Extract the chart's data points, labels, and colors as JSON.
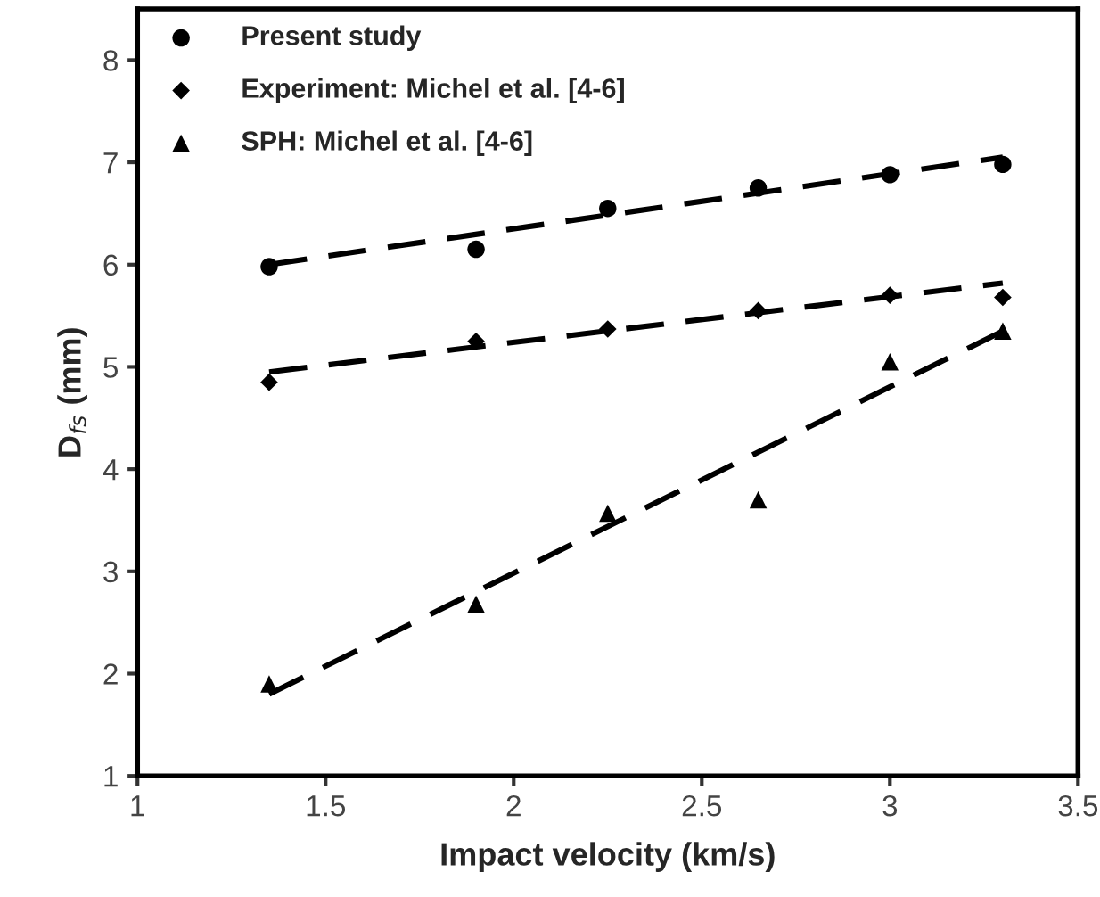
{
  "chart_data": {
    "type": "scatter",
    "xlabel": "Impact velocity (km/s)",
    "ylabel": "D$_{fs}$ (mm)",
    "xlim": [
      1,
      3.5
    ],
    "xticks": [
      1,
      1.5,
      2,
      2.5,
      3,
      3.5
    ],
    "ylim": [
      1,
      8.5
    ],
    "yticks": [
      1,
      2,
      3,
      4,
      5,
      6,
      7,
      8
    ],
    "grid": false,
    "legend": "top left",
    "series": [
      {
        "name": "Present study",
        "color": "#000000",
        "marker": "circle",
        "x": [
          1.35,
          1.9,
          2.25,
          2.65,
          3.0,
          3.3
        ],
        "values": [
          5.98,
          6.15,
          6.55,
          6.75,
          6.88,
          6.98
        ]
      },
      {
        "name": "Experiment: Michel et al. [4-6]",
        "color": "#000000",
        "marker": "diamond",
        "x": [
          1.35,
          1.9,
          2.25,
          2.65,
          3.0,
          3.3
        ],
        "values": [
          4.85,
          5.25,
          5.37,
          5.55,
          5.7,
          5.68
        ]
      },
      {
        "name": "SPH: Michel et al. [4-6]",
        "color": "#000000",
        "marker": "triangle",
        "x": [
          1.35,
          1.9,
          2.25,
          2.65,
          3.0,
          3.3
        ],
        "values": [
          1.9,
          2.68,
          3.57,
          3.7,
          5.05,
          5.35
        ]
      },
      {
        "type": "line",
        "color": "#000000",
        "line_style": "dashed",
        "x": [
          1.35,
          3.3
        ],
        "values": [
          6.0,
          7.05
        ]
      },
      {
        "type": "line",
        "color": "#000000",
        "line_style": "dashed",
        "x": [
          1.35,
          3.3
        ],
        "values": [
          4.95,
          5.82
        ]
      },
      {
        "type": "line",
        "color": "#000000",
        "line_style": "dashed",
        "x": [
          1.35,
          3.3
        ],
        "values": [
          1.8,
          5.35
        ]
      }
    ]
  }
}
